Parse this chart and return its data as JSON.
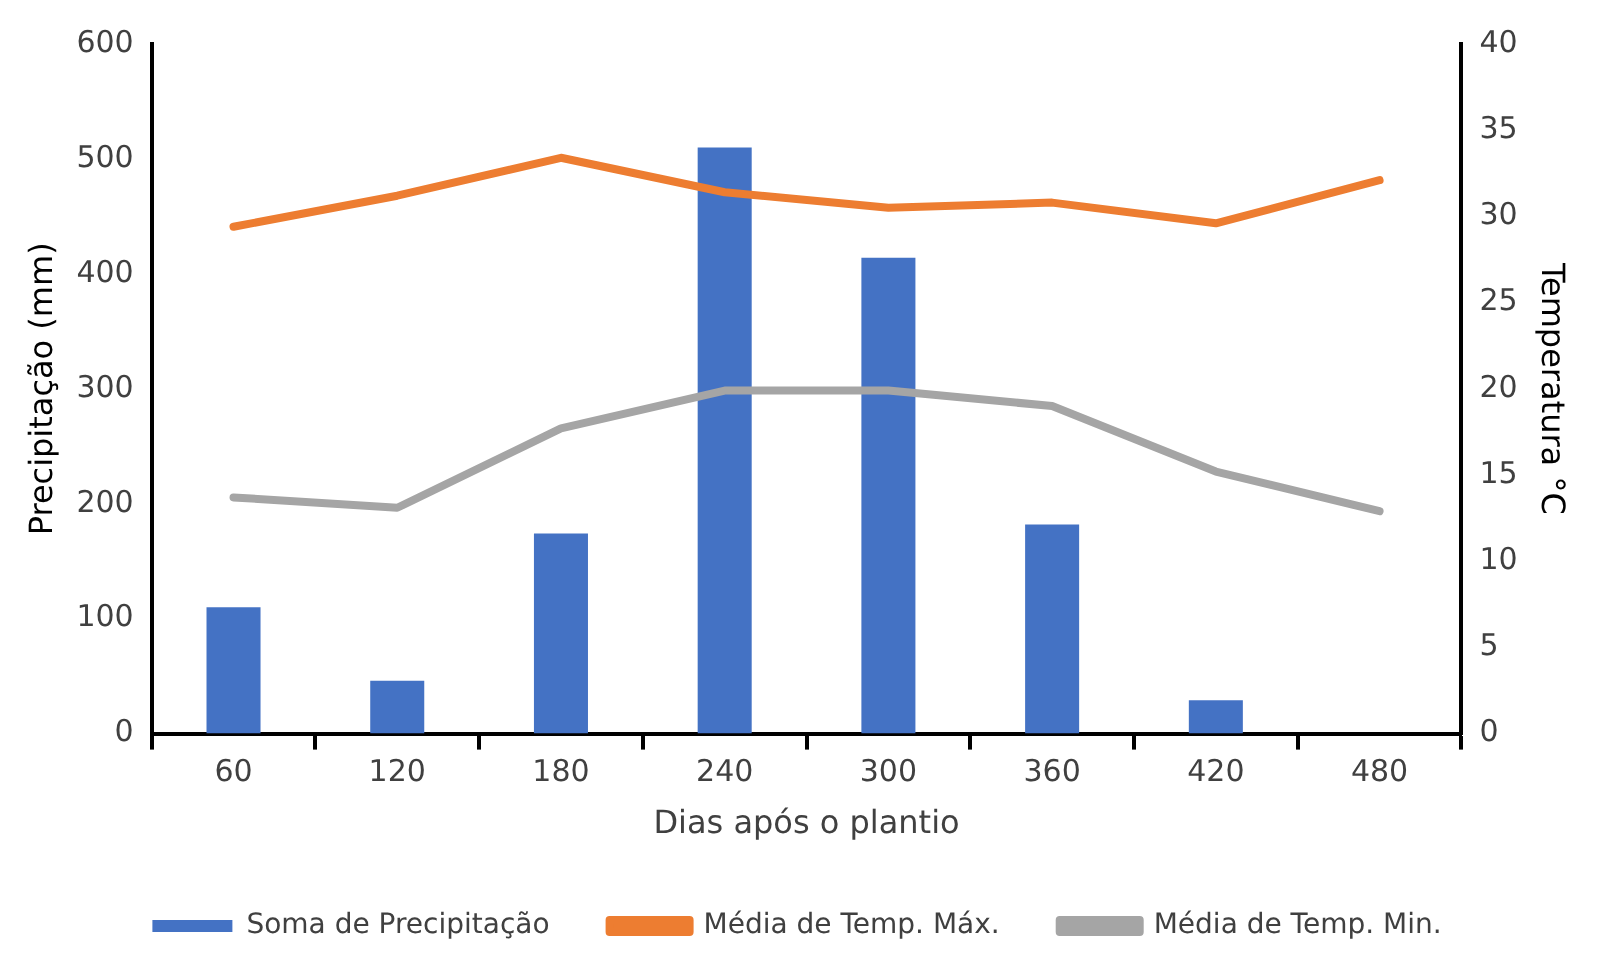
{
  "chart_data": {
    "type": "bar",
    "xlabel": "Dias após o plantio",
    "ylabel": "Precipitação (mm)",
    "y2label": "Temperatura °C",
    "categories": [
      "60",
      "120",
      "180",
      "240",
      "300",
      "360",
      "420",
      "480"
    ],
    "series": [
      {
        "name": "Soma de Precipitação",
        "color": "#4472c4",
        "values": [
          110,
          46,
          174,
          510,
          414,
          182,
          29,
          null
        ]
      },
      {
        "name": "Média de Temp. Máx.",
        "type": "line",
        "axis": "y2",
        "color": "#ed7d31",
        "values": [
          29.4,
          31.2,
          33.4,
          31.4,
          30.5,
          30.8,
          29.6,
          32.1
        ]
      },
      {
        "name": "Média de Temp. Min.",
        "type": "line",
        "axis": "y2",
        "color": "#a5a5a5",
        "values": [
          13.7,
          13.1,
          17.7,
          19.9,
          19.9,
          19.0,
          15.2,
          12.9
        ]
      }
    ],
    "ylim": [
      0,
      600
    ],
    "yticks": [
      0,
      100,
      200,
      300,
      400,
      500,
      600
    ],
    "y2lim": [
      0,
      40
    ],
    "y2ticks": [
      0,
      5,
      10,
      15,
      20,
      25,
      30,
      35,
      40
    ],
    "grid": false,
    "legend": "bottom",
    "marker": "none",
    "line_style": "solid"
  }
}
